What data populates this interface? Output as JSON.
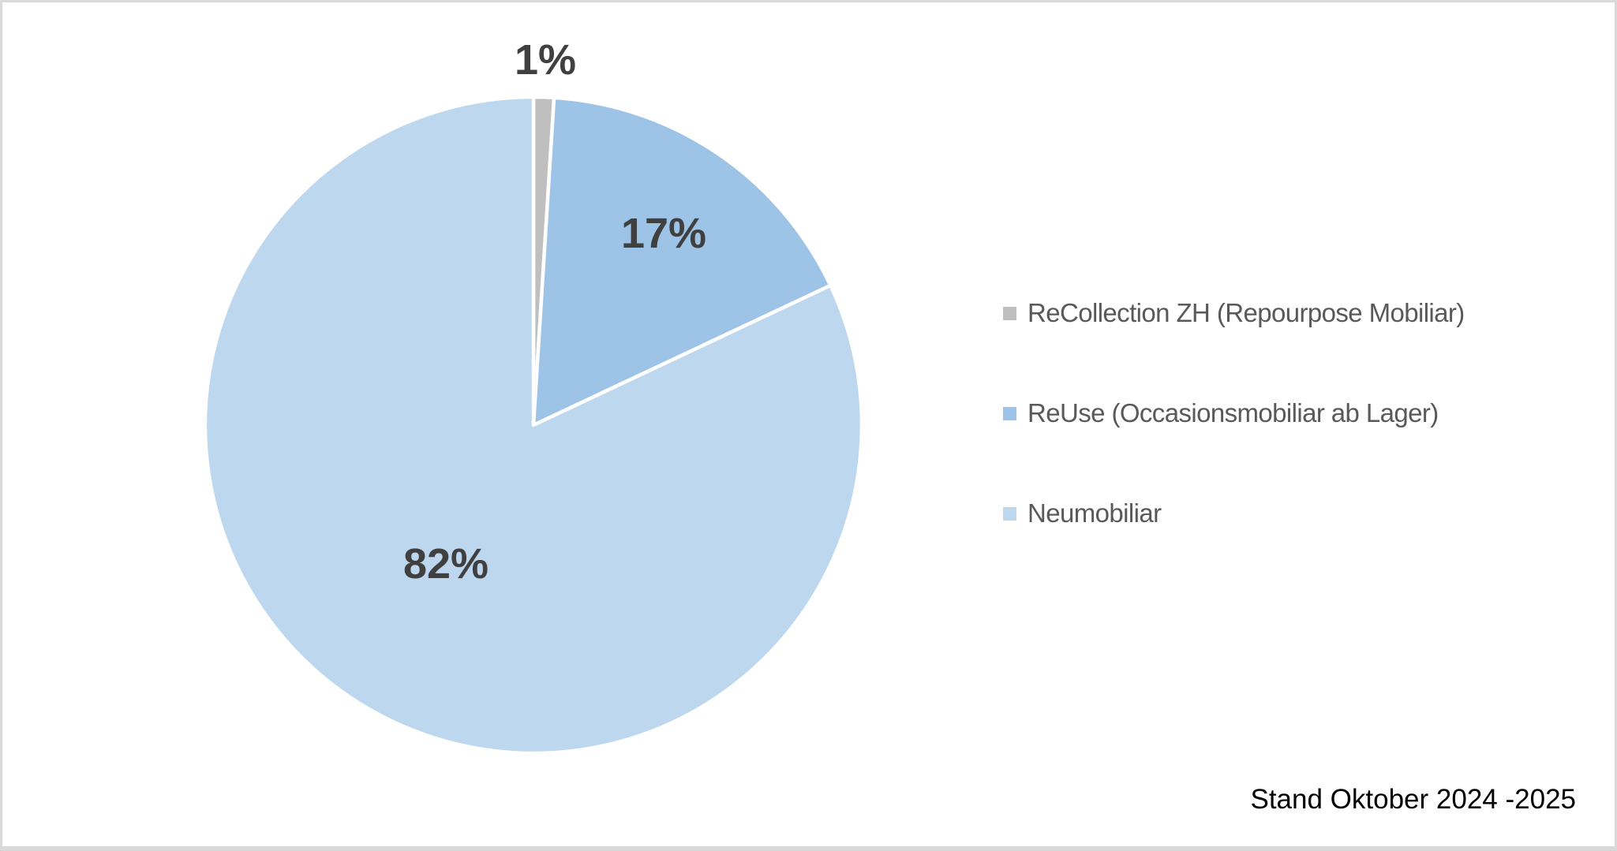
{
  "colors": {
    "background": "#FFFFFF",
    "canvas_border": "#D9D9D9",
    "data_label_text": "#404040",
    "legend_text": "#595959",
    "footnote_text": "#000000",
    "slice_separator": "#FFFFFF"
  },
  "chart_data": {
    "type": "pie",
    "title": "",
    "categories": [
      "ReCollection ZH (Repourpose Mobiliar)",
      "ReUse (Occasionsmobiliar ab Lager)",
      "Neumobiliar"
    ],
    "values": [
      1,
      17,
      82
    ],
    "colors": [
      "#BFBFBF",
      "#9DC3E6",
      "#BDD7EE"
    ],
    "data_labels": [
      "1%",
      "17%",
      "82%"
    ],
    "legend_position": "right",
    "legend_marker": "square",
    "start_angle_deg": 0,
    "direction": "clockwise",
    "grid": false,
    "footnote": "Stand Oktober 2024 -2025"
  }
}
